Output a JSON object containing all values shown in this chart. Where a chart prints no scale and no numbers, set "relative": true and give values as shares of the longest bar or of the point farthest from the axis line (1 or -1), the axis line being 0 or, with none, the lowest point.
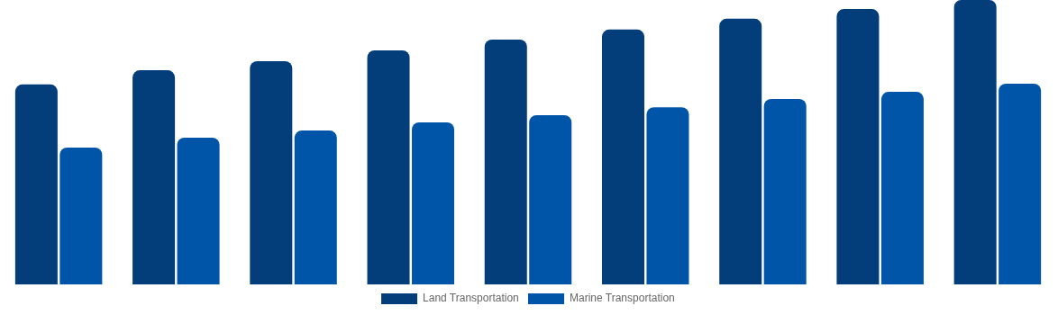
{
  "chart_data": {
    "type": "bar",
    "relative": true,
    "categories": [
      null,
      null,
      null,
      null,
      null,
      null,
      null,
      null,
      null
    ],
    "series": [
      {
        "name": "Land Transportation",
        "color": "#033d7a",
        "values": [
          0.703,
          0.753,
          0.785,
          0.823,
          0.861,
          0.896,
          0.934,
          0.968,
          1
        ]
      },
      {
        "name": "Marine Transportation",
        "color": "#0055a8",
        "values": [
          0.481,
          0.516,
          0.541,
          0.57,
          0.595,
          0.623,
          0.652,
          0.677,
          0.706
        ]
      }
    ],
    "legend": "bottom"
  }
}
